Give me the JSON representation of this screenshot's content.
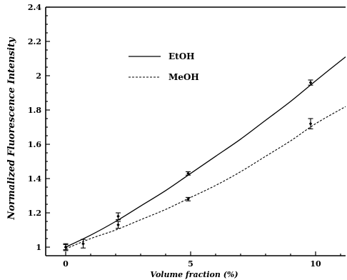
{
  "chart_data": {
    "type": "line",
    "title": "",
    "xlabel": "Volume fraction (%)",
    "ylabel": "Normalized Fluorescence Intensity",
    "xlim": [
      -0.8,
      11.2
    ],
    "ylim": [
      0.95,
      2.4
    ],
    "x_ticks": [
      0,
      5,
      10
    ],
    "y_ticks": [
      1,
      1.2,
      1.4,
      1.6,
      1.8,
      2,
      2.2,
      2.4
    ],
    "x_tick_labels": [
      "0",
      "5",
      "10"
    ],
    "y_tick_labels": [
      "1",
      "1.2",
      "1.4",
      "1.6",
      "1.8",
      "2",
      "2.2",
      "2.4"
    ],
    "grid": false,
    "legend_position": "top-center",
    "series": [
      {
        "name": "EtOH",
        "style": "solid",
        "color": "#000000",
        "curve": [
          [
            0,
            1.0
          ],
          [
            1,
            1.07
          ],
          [
            2,
            1.15
          ],
          [
            3,
            1.24
          ],
          [
            4,
            1.33
          ],
          [
            5,
            1.43
          ],
          [
            6,
            1.53
          ],
          [
            7,
            1.63
          ],
          [
            8,
            1.74
          ],
          [
            9,
            1.85
          ],
          [
            10,
            1.97
          ],
          [
            11.2,
            2.11
          ]
        ],
        "points": [
          {
            "x": 0,
            "y": 1.0,
            "err": 0.02
          },
          {
            "x": 2.1,
            "y": 1.18,
            "err": 0.02
          },
          {
            "x": 4.9,
            "y": 1.43,
            "err": 0.01
          },
          {
            "x": 9.8,
            "y": 1.96,
            "err": 0.015
          }
        ]
      },
      {
        "name": "MeOH",
        "style": "dashed",
        "color": "#000000",
        "curve": [
          [
            0,
            0.99
          ],
          [
            1,
            1.05
          ],
          [
            2,
            1.1
          ],
          [
            3,
            1.16
          ],
          [
            4,
            1.22
          ],
          [
            5,
            1.29
          ],
          [
            6,
            1.36
          ],
          [
            7,
            1.44
          ],
          [
            8,
            1.53
          ],
          [
            9,
            1.62
          ],
          [
            10,
            1.72
          ],
          [
            11.2,
            1.82
          ]
        ],
        "points": [
          {
            "x": 0,
            "y": 1.0,
            "err": 0.015
          },
          {
            "x": 0.7,
            "y": 1.02,
            "err": 0.025
          },
          {
            "x": 2.1,
            "y": 1.13,
            "err": 0.02
          },
          {
            "x": 4.9,
            "y": 1.28,
            "err": 0.01
          },
          {
            "x": 9.8,
            "y": 1.72,
            "err": 0.03
          }
        ]
      }
    ]
  }
}
